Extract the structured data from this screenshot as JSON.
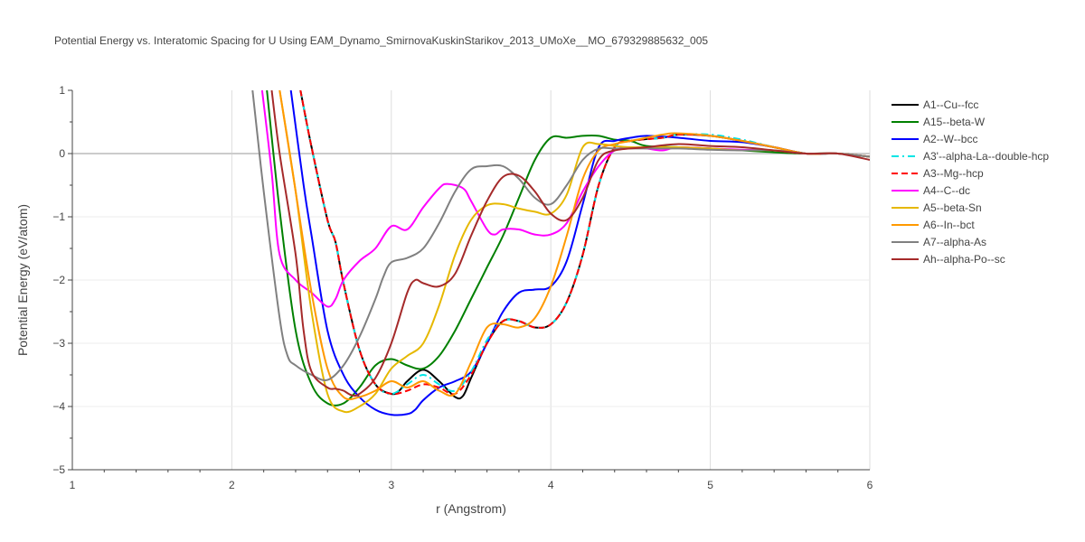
{
  "chart_data": {
    "type": "line",
    "title": "Potential Energy vs. Interatomic Spacing for U Using EAM_Dynamo_SmirnovaKuskinStarikov_2013_UMoXe__MO_679329885632_005",
    "xlabel": "r (Angstrom)",
    "ylabel": "Potential Energy (eV/atom)",
    "xlim": [
      1,
      6
    ],
    "ylim": [
      -5,
      1
    ],
    "xticks": [
      1,
      2,
      3,
      4,
      5,
      6
    ],
    "yticks": [
      1,
      0,
      -1,
      -2,
      -3,
      -4,
      -5
    ],
    "ytick_labels": [
      "1",
      "0",
      "−1",
      "−2",
      "−3",
      "−4",
      "−5"
    ],
    "grid": true,
    "legend_position": "right",
    "series": [
      {
        "name": "A1--Cu--fcc",
        "color": "#000000",
        "dash": "solid",
        "x": [
          2.43,
          2.5,
          2.6,
          2.65,
          2.7,
          2.8,
          2.9,
          3.0,
          3.05,
          3.1,
          3.2,
          3.3,
          3.4,
          3.45,
          3.5,
          3.6,
          3.7,
          3.8,
          3.9,
          4.0,
          4.1,
          4.2,
          4.3,
          4.4,
          4.5,
          4.7,
          4.8,
          5.0,
          5.2,
          5.4,
          5.6,
          5.8,
          6.0
        ],
        "y": [
          1.0,
          0.1,
          -1.05,
          -1.4,
          -2.05,
          -3.1,
          -3.65,
          -3.8,
          -3.75,
          -3.6,
          -3.42,
          -3.6,
          -3.85,
          -3.83,
          -3.55,
          -3.0,
          -2.65,
          -2.65,
          -2.75,
          -2.7,
          -2.35,
          -1.6,
          -0.5,
          0.1,
          0.2,
          0.25,
          0.3,
          0.28,
          0.2,
          0.1,
          0.0,
          0.0,
          -0.05
        ]
      },
      {
        "name": "A15--beta-W",
        "color": "#008000",
        "dash": "solid",
        "x": [
          2.22,
          2.3,
          2.4,
          2.5,
          2.6,
          2.7,
          2.8,
          2.9,
          3.0,
          3.1,
          3.2,
          3.3,
          3.4,
          3.5,
          3.6,
          3.7,
          3.8,
          3.9,
          4.0,
          4.1,
          4.2,
          4.3,
          4.4,
          4.5,
          4.6,
          4.8,
          5.0,
          5.2,
          5.4,
          5.6,
          5.8,
          6.0
        ],
        "y": [
          1.0,
          -0.9,
          -2.8,
          -3.65,
          -3.95,
          -3.95,
          -3.7,
          -3.35,
          -3.25,
          -3.35,
          -3.4,
          -3.2,
          -2.8,
          -2.3,
          -1.8,
          -1.3,
          -0.7,
          -0.1,
          0.25,
          0.25,
          0.28,
          0.28,
          0.22,
          0.2,
          0.12,
          0.1,
          0.08,
          0.05,
          0.02,
          0.0,
          0.0,
          -0.05
        ]
      },
      {
        "name": "A2--W--bcc",
        "color": "#0000ff",
        "dash": "solid",
        "x": [
          2.37,
          2.45,
          2.5,
          2.6,
          2.7,
          2.8,
          2.9,
          3.0,
          3.1,
          3.15,
          3.2,
          3.3,
          3.4,
          3.5,
          3.6,
          3.7,
          3.8,
          3.9,
          4.0,
          4.1,
          4.2,
          4.3,
          4.4,
          4.5,
          4.6,
          4.8,
          5.0,
          5.2,
          5.4,
          5.6,
          5.8,
          6.0
        ],
        "y": [
          1.0,
          -0.5,
          -1.3,
          -2.8,
          -3.5,
          -3.85,
          -4.05,
          -4.13,
          -4.12,
          -4.05,
          -3.9,
          -3.7,
          -3.6,
          -3.45,
          -3.0,
          -2.5,
          -2.2,
          -2.15,
          -2.1,
          -1.7,
          -0.8,
          0.1,
          0.2,
          0.25,
          0.28,
          0.25,
          0.2,
          0.18,
          0.1,
          0.0,
          0.0,
          -0.05
        ]
      },
      {
        "name": "A3'--alpha-La--double-hcp",
        "color": "#00e5e5",
        "dash": "dashdot",
        "x": [
          2.43,
          2.5,
          2.6,
          2.65,
          2.7,
          2.8,
          2.9,
          3.0,
          3.1,
          3.2,
          3.3,
          3.4,
          3.5,
          3.6,
          3.7,
          3.8,
          3.9,
          4.0,
          4.1,
          4.2,
          4.3,
          4.4,
          4.5,
          4.7,
          4.8,
          5.0,
          5.2,
          5.4,
          5.6,
          5.8,
          6.0
        ],
        "y": [
          1.0,
          0.1,
          -1.05,
          -1.4,
          -2.05,
          -3.1,
          -3.65,
          -3.8,
          -3.65,
          -3.5,
          -3.65,
          -3.75,
          -3.45,
          -2.95,
          -2.65,
          -2.65,
          -2.75,
          -2.7,
          -2.35,
          -1.6,
          -0.5,
          0.1,
          0.2,
          0.25,
          0.3,
          0.3,
          0.22,
          0.1,
          0.0,
          0.0,
          -0.05
        ]
      },
      {
        "name": "A3--Mg--hcp",
        "color": "#ff0000",
        "dash": "dash",
        "x": [
          2.43,
          2.5,
          2.6,
          2.65,
          2.7,
          2.8,
          2.9,
          3.0,
          3.1,
          3.2,
          3.3,
          3.4,
          3.5,
          3.6,
          3.7,
          3.8,
          3.9,
          4.0,
          4.1,
          4.2,
          4.3,
          4.4,
          4.5,
          4.7,
          4.8,
          5.0,
          5.2,
          5.4,
          5.6,
          5.8,
          6.0
        ],
        "y": [
          1.0,
          0.1,
          -1.05,
          -1.4,
          -2.05,
          -3.1,
          -3.65,
          -3.8,
          -3.75,
          -3.65,
          -3.7,
          -3.8,
          -3.5,
          -3.0,
          -2.65,
          -2.65,
          -2.75,
          -2.7,
          -2.35,
          -1.6,
          -0.5,
          0.1,
          0.2,
          0.25,
          0.3,
          0.28,
          0.2,
          0.1,
          0.0,
          0.0,
          -0.05
        ]
      },
      {
        "name": "A4--C--dc",
        "color": "#ff00ff",
        "dash": "solid",
        "x": [
          2.19,
          2.25,
          2.3,
          2.4,
          2.5,
          2.6,
          2.65,
          2.7,
          2.8,
          2.9,
          3.0,
          3.1,
          3.2,
          3.3,
          3.35,
          3.45,
          3.5,
          3.6,
          3.65,
          3.7,
          3.8,
          3.9,
          4.0,
          4.1,
          4.2,
          4.3,
          4.4,
          4.5,
          4.6,
          4.7,
          4.8,
          5.0,
          5.2,
          5.4,
          5.6,
          5.8,
          6.0
        ],
        "y": [
          1.0,
          -0.3,
          -1.6,
          -2.0,
          -2.2,
          -2.42,
          -2.3,
          -2.0,
          -1.7,
          -1.5,
          -1.15,
          -1.2,
          -0.85,
          -0.55,
          -0.48,
          -0.55,
          -0.75,
          -1.2,
          -1.28,
          -1.2,
          -1.2,
          -1.28,
          -1.28,
          -1.1,
          -0.6,
          -0.2,
          0.05,
          0.1,
          0.08,
          0.05,
          0.1,
          0.08,
          0.06,
          0.05,
          0.0,
          0.0,
          -0.05
        ]
      },
      {
        "name": "A5--beta-Sn",
        "color": "#e6b800",
        "dash": "solid",
        "x": [
          2.3,
          2.4,
          2.5,
          2.6,
          2.7,
          2.8,
          2.9,
          3.0,
          3.1,
          3.2,
          3.3,
          3.4,
          3.5,
          3.6,
          3.7,
          3.8,
          3.9,
          4.0,
          4.1,
          4.2,
          4.3,
          4.4,
          4.5,
          4.6,
          4.8,
          5.0,
          5.2,
          5.4,
          5.6,
          5.8,
          6.0
        ],
        "y": [
          1.0,
          -0.6,
          -2.5,
          -3.8,
          -4.08,
          -4.0,
          -3.8,
          -3.4,
          -3.2,
          -3.0,
          -2.4,
          -1.6,
          -1.05,
          -0.82,
          -0.8,
          -0.87,
          -0.92,
          -0.95,
          -0.65,
          0.1,
          0.15,
          0.12,
          0.1,
          0.1,
          0.1,
          0.08,
          0.05,
          0.05,
          0.0,
          0.0,
          -0.05
        ]
      },
      {
        "name": "A6--In--bct",
        "color": "#ff9900",
        "dash": "solid",
        "x": [
          2.3,
          2.4,
          2.5,
          2.6,
          2.7,
          2.8,
          2.9,
          3.0,
          3.1,
          3.2,
          3.3,
          3.4,
          3.5,
          3.6,
          3.7,
          3.8,
          3.9,
          4.0,
          4.1,
          4.2,
          4.3,
          4.4,
          4.5,
          4.7,
          4.8,
          5.0,
          5.2,
          5.4,
          5.6,
          5.8,
          6.0
        ],
        "y": [
          1.0,
          -0.6,
          -2.2,
          -3.4,
          -3.85,
          -3.85,
          -3.75,
          -3.6,
          -3.7,
          -3.6,
          -3.75,
          -3.8,
          -3.3,
          -2.75,
          -2.7,
          -2.75,
          -2.6,
          -2.1,
          -1.3,
          -0.4,
          0.05,
          0.15,
          0.2,
          0.3,
          0.32,
          0.28,
          0.2,
          0.1,
          0.0,
          0.0,
          -0.05
        ]
      },
      {
        "name": "A7--alpha-As",
        "color": "#808080",
        "dash": "solid",
        "x": [
          2.13,
          2.2,
          2.3,
          2.35,
          2.4,
          2.5,
          2.6,
          2.7,
          2.8,
          2.9,
          2.95,
          3.0,
          3.1,
          3.2,
          3.3,
          3.4,
          3.5,
          3.6,
          3.7,
          3.8,
          3.9,
          4.0,
          4.1,
          4.2,
          4.3,
          4.4,
          4.6,
          4.8,
          5.0,
          5.2,
          5.4,
          5.6,
          5.8,
          6.0
        ],
        "y": [
          1.0,
          -0.6,
          -2.6,
          -3.2,
          -3.35,
          -3.5,
          -3.58,
          -3.35,
          -2.9,
          -2.3,
          -1.95,
          -1.72,
          -1.65,
          -1.5,
          -1.1,
          -0.6,
          -0.25,
          -0.2,
          -0.2,
          -0.4,
          -0.7,
          -0.8,
          -0.5,
          -0.1,
          0.08,
          0.08,
          0.08,
          0.08,
          0.06,
          0.05,
          0.05,
          0.0,
          0.0,
          -0.05
        ]
      },
      {
        "name": "Ah--alpha-Po--sc",
        "color": "#a52a2a",
        "dash": "solid",
        "x": [
          2.25,
          2.3,
          2.4,
          2.45,
          2.5,
          2.6,
          2.65,
          2.7,
          2.75,
          2.8,
          2.9,
          3.0,
          3.1,
          3.15,
          3.2,
          3.3,
          3.4,
          3.5,
          3.6,
          3.7,
          3.8,
          3.9,
          4.0,
          4.1,
          4.2,
          4.3,
          4.4,
          4.6,
          4.8,
          5.0,
          5.2,
          5.4,
          5.6,
          5.8,
          6.0
        ],
        "y": [
          1.0,
          0.0,
          -1.6,
          -2.8,
          -3.45,
          -3.7,
          -3.72,
          -3.75,
          -3.82,
          -3.8,
          -3.55,
          -3.0,
          -2.2,
          -2.0,
          -2.05,
          -2.1,
          -1.9,
          -1.3,
          -0.75,
          -0.37,
          -0.35,
          -0.6,
          -0.95,
          -1.05,
          -0.7,
          -0.1,
          0.05,
          0.1,
          0.15,
          0.12,
          0.1,
          0.05,
          0.0,
          0.0,
          -0.1
        ]
      }
    ]
  }
}
